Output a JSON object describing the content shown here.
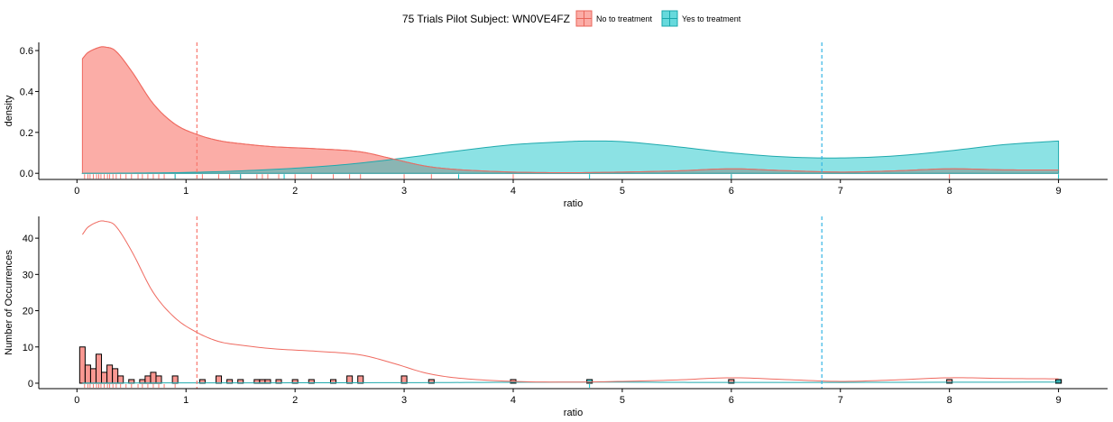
{
  "legend": {
    "title": "75 Trials Pilot Subject:  WN0VE4FZ",
    "items": [
      {
        "label": "No to treatment",
        "fill": "#F8766D",
        "stroke": "#E8655A"
      },
      {
        "label": "Yes to treatment",
        "fill": "#00BFC4",
        "stroke": "#1AA7AB"
      }
    ],
    "placement": "top-center"
  },
  "colors": {
    "no_fill": "#F8766D",
    "no_line": "#EF6A60",
    "yes_fill": "#00BFC4",
    "yes_line": "#1FA9AD",
    "overlap": "#8E8E8E",
    "vline_no": "#F8766D",
    "vline_yes": "#33B5E5"
  },
  "chart_data": [
    {
      "type": "area",
      "title": "",
      "xlabel": "ratio",
      "ylabel": "density",
      "xlim": [
        -0.35,
        9.45
      ],
      "ylim": [
        -0.03,
        0.64
      ],
      "xticks": [
        0,
        1,
        2,
        3,
        4,
        5,
        6,
        7,
        8,
        9
      ],
      "yticks": [
        0.0,
        0.2,
        0.4,
        0.6
      ],
      "ytick_labels": [
        "0.0",
        "0.2",
        "0.4",
        "0.6"
      ],
      "vlines": [
        {
          "x": 1.1,
          "series": "No to treatment"
        },
        {
          "x": 6.83,
          "series": "Yes to treatment"
        }
      ],
      "series": [
        {
          "name": "No to treatment",
          "x": [
            0.05,
            0.1,
            0.2,
            0.25,
            0.35,
            0.5,
            0.7,
            0.9,
            1.1,
            1.3,
            1.5,
            1.8,
            2.2,
            2.6,
            2.9,
            3.2,
            3.5,
            4.0,
            4.5,
            5.0,
            5.5,
            6.0,
            6.5,
            7.0,
            7.5,
            8.0,
            8.5,
            9.0
          ],
          "y": [
            0.56,
            0.59,
            0.615,
            0.618,
            0.6,
            0.5,
            0.34,
            0.24,
            0.19,
            0.16,
            0.145,
            0.13,
            0.12,
            0.105,
            0.07,
            0.035,
            0.018,
            0.006,
            0.003,
            0.006,
            0.012,
            0.022,
            0.013,
            0.006,
            0.012,
            0.022,
            0.017,
            0.016
          ]
        },
        {
          "name": "Yes to treatment",
          "x": [
            0.05,
            0.5,
            1.0,
            1.5,
            2.0,
            2.5,
            3.0,
            3.5,
            4.0,
            4.5,
            4.7,
            5.0,
            5.5,
            6.0,
            6.5,
            7.0,
            7.5,
            8.0,
            8.5,
            9.0
          ],
          "y": [
            0.0,
            0.001,
            0.004,
            0.012,
            0.025,
            0.045,
            0.075,
            0.11,
            0.14,
            0.155,
            0.158,
            0.155,
            0.13,
            0.1,
            0.08,
            0.075,
            0.085,
            0.11,
            0.14,
            0.158
          ]
        }
      ],
      "rug": {
        "No to treatment": [
          0.07,
          0.1,
          0.12,
          0.15,
          0.18,
          0.2,
          0.22,
          0.25,
          0.28,
          0.3,
          0.33,
          0.36,
          0.4,
          0.45,
          0.5,
          0.56,
          0.6,
          0.65,
          0.7,
          0.75,
          0.8,
          0.9,
          1.15,
          1.3,
          1.4,
          1.5,
          1.65,
          1.7,
          1.75,
          1.85,
          2.0,
          2.15,
          2.35,
          2.5,
          2.6,
          3.0,
          3.25,
          4.0,
          6.0,
          8.0
        ],
        "Yes to treatment": [
          0.9,
          1.5,
          1.9,
          3.5,
          4.7,
          6.0,
          9.0
        ]
      }
    },
    {
      "type": "bar",
      "title": "",
      "xlabel": "ratio",
      "ylabel": "Number of Occurrences",
      "xlim": [
        -0.35,
        9.45
      ],
      "ylim": [
        -1.5,
        46
      ],
      "xticks": [
        0,
        1,
        2,
        3,
        4,
        5,
        6,
        7,
        8,
        9
      ],
      "yticks": [
        0,
        10,
        20,
        30,
        40
      ],
      "binwidth": 0.05,
      "vlines": [
        {
          "x": 1.1,
          "series": "No to treatment"
        },
        {
          "x": 6.83,
          "series": "Yes to treatment"
        }
      ],
      "series": [
        {
          "name": "No to treatment",
          "bins": [
            0.05,
            0.1,
            0.15,
            0.2,
            0.25,
            0.3,
            0.35,
            0.4,
            0.5,
            0.6,
            0.65,
            0.7,
            0.75,
            0.9,
            1.15,
            1.3,
            1.4,
            1.5,
            1.65,
            1.7,
            1.75,
            1.85,
            2.0,
            2.15,
            2.35,
            2.5,
            2.6,
            3.0,
            3.25,
            4.0,
            6.0,
            8.0,
            9.0
          ],
          "values": [
            10,
            5,
            4,
            8,
            3,
            5,
            4,
            2,
            1,
            1,
            2,
            3,
            2,
            2,
            1,
            2,
            1,
            1,
            1,
            1,
            1,
            1,
            1,
            1,
            1,
            2,
            2,
            2,
            1,
            1,
            1,
            1,
            1
          ]
        },
        {
          "name": "Yes to treatment",
          "bins": [
            4.7,
            9.0
          ],
          "values": [
            1,
            1
          ]
        }
      ],
      "smooth_curve": {
        "name": "No to treatment",
        "x": [
          0.05,
          0.1,
          0.2,
          0.25,
          0.35,
          0.5,
          0.7,
          0.9,
          1.1,
          1.3,
          1.5,
          1.8,
          2.2,
          2.6,
          2.9,
          3.2,
          3.5,
          4.0,
          4.5,
          5.0,
          5.5,
          6.0,
          6.5,
          7.0,
          7.5,
          8.0,
          8.5,
          9.0
        ],
        "y": [
          41,
          43,
          44.6,
          44.7,
          43.5,
          36.5,
          25,
          18,
          14,
          11.5,
          10.5,
          9.5,
          8.8,
          7.8,
          5.5,
          2.8,
          1.4,
          0.5,
          0.3,
          0.5,
          0.9,
          1.5,
          1.0,
          0.5,
          0.9,
          1.5,
          1.3,
          1.2
        ]
      },
      "smooth_curve_yes": {
        "name": "Yes to treatment",
        "x": [
          0.05,
          3.0,
          4.7,
          6.0,
          9.0
        ],
        "y": [
          0.05,
          0.15,
          0.3,
          0.2,
          0.3
        ]
      },
      "rug": {
        "No to treatment": [
          0.07,
          0.1,
          0.12,
          0.15,
          0.18,
          0.2,
          0.22,
          0.25,
          0.28,
          0.3,
          0.33,
          0.36,
          0.4,
          0.45,
          0.5,
          0.56,
          0.6,
          0.65,
          0.7,
          0.75,
          0.8,
          0.9
        ],
        "Yes to treatment": [
          4.7
        ]
      }
    }
  ]
}
